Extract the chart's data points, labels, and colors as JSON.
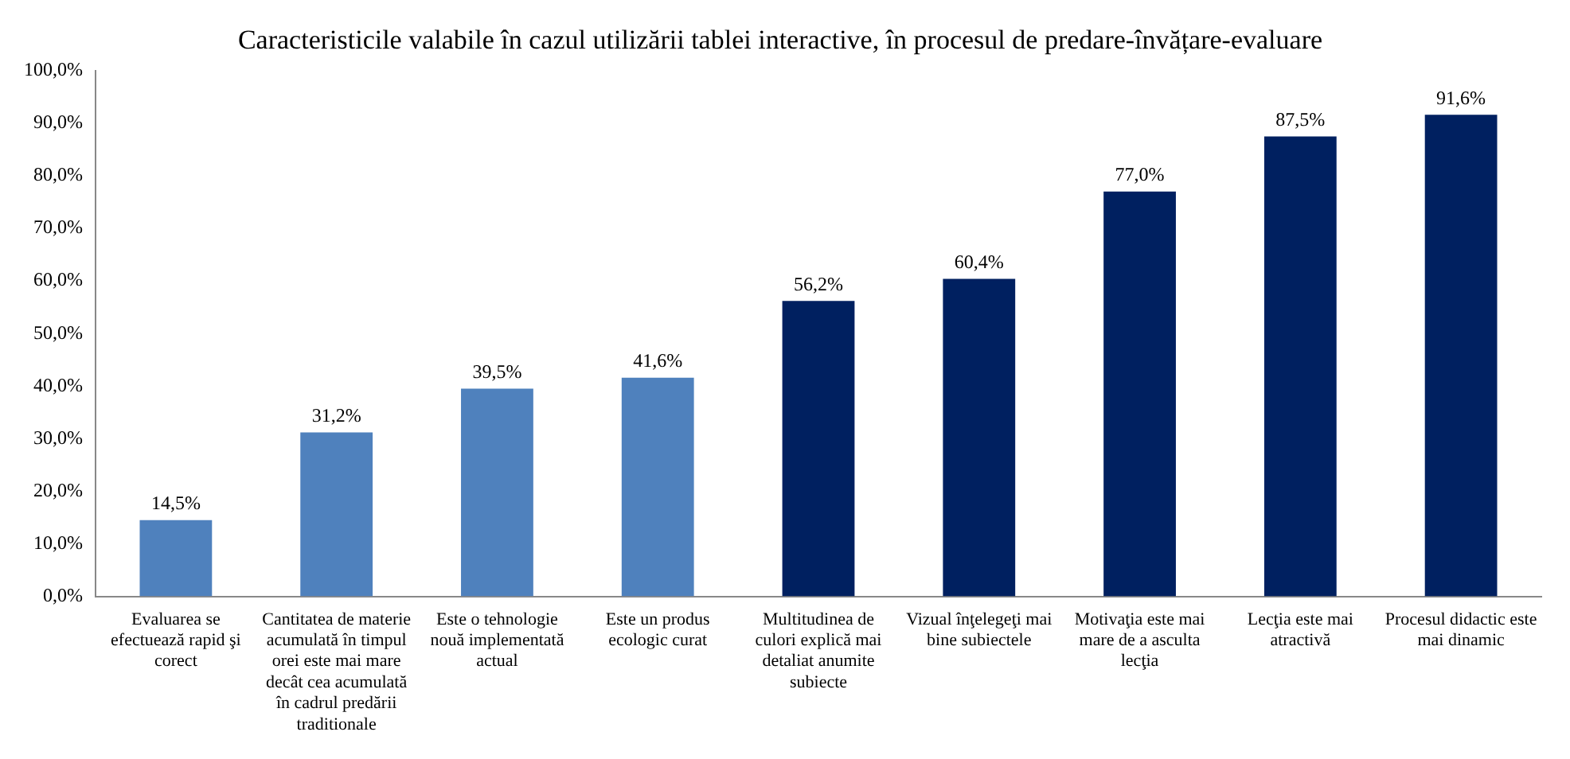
{
  "chart_data": {
    "type": "bar",
    "title": "Caracteristicile valabile în cazul utilizării tablei interactive, în procesul de predare-învățare-evaluare",
    "categories": [
      "Evaluarea se efectuează rapid şi corect",
      "Cantitatea de materie acumulată în timpul orei este mai mare decât cea acumulată în cadrul predării traditionale",
      "Este o tehnologie nouă implementată actual",
      "Este un produs ecologic curat",
      "Multitudinea de culori explică mai detaliat anumite subiecte",
      "Vizual înţelegeţi mai bine subiectele",
      "Motivaţia este mai mare de a asculta lecţia",
      "Lecţia este mai atractivă",
      "Procesul didactic este mai dinamic"
    ],
    "values": [
      14.5,
      31.2,
      39.5,
      41.6,
      56.2,
      60.4,
      77.0,
      87.5,
      91.6
    ],
    "value_labels": [
      "14,5%",
      "31,2%",
      "39,5%",
      "41,6%",
      "56,2%",
      "60,4%",
      "77,0%",
      "87,5%",
      "91,6%"
    ],
    "colors": [
      "#4f81bd",
      "#4f81bd",
      "#4f81bd",
      "#4f81bd",
      "#002060",
      "#002060",
      "#002060",
      "#002060",
      "#002060"
    ],
    "ylim": [
      0,
      100
    ],
    "yticks": [
      {
        "value": 0,
        "label": "0,0%"
      },
      {
        "value": 10,
        "label": "10,0%"
      },
      {
        "value": 20,
        "label": "20,0%"
      },
      {
        "value": 30,
        "label": "30,0%"
      },
      {
        "value": 40,
        "label": "40,0%"
      },
      {
        "value": 50,
        "label": "50,0%"
      },
      {
        "value": 60,
        "label": "60,0%"
      },
      {
        "value": 70,
        "label": "70,0%"
      },
      {
        "value": 80,
        "label": "80,0%"
      },
      {
        "value": 90,
        "label": "90,0%"
      },
      {
        "value": 100,
        "label": "100,0%"
      }
    ],
    "grid": false,
    "legend": false
  }
}
